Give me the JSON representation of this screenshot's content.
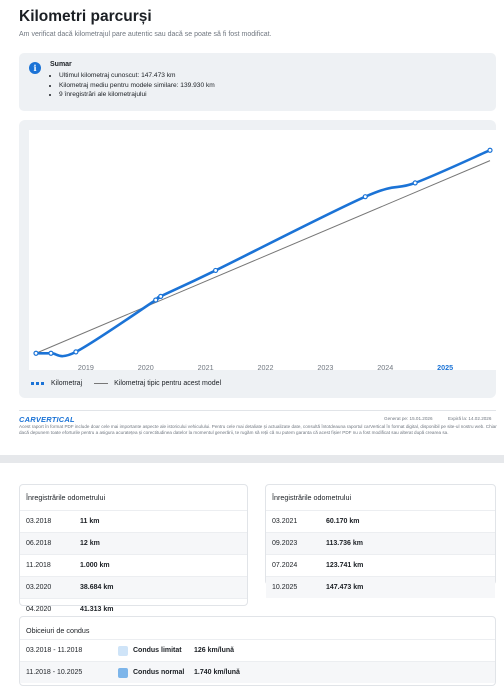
{
  "header": {
    "title": "Kilometri parcurși",
    "subtitle": "Am verificat dacă kilometrajul pare autentic sau dacă se poate să fi fost modificat."
  },
  "summary": {
    "title": "Sumar",
    "icon": "info-icon",
    "items": [
      "Ultimul kilometraj cunoscut: 147.473 km",
      "Kilometraj mediu pentru modele similare: 139.930 km",
      "9 înregistrări ale kilometrajului"
    ]
  },
  "chart_data": {
    "type": "line",
    "title": "",
    "xlabel": "",
    "ylabel": "",
    "x_ticks": [
      "2019",
      "2020",
      "2021",
      "2022",
      "2023",
      "2024",
      "2025"
    ],
    "highlight_tick": "2025",
    "grid": false,
    "legend_position": "bottom-left",
    "series": [
      {
        "name": "Kilometraj",
        "style": "dashed-markers",
        "color": "#1b73d6",
        "points": [
          {
            "x": "03.2018",
            "y": 11
          },
          {
            "x": "06.2018",
            "y": 12
          },
          {
            "x": "11.2018",
            "y": 1000
          },
          {
            "x": "03.2020",
            "y": 38684
          },
          {
            "x": "04.2020",
            "y": 41313
          },
          {
            "x": "03.2021",
            "y": 60170
          },
          {
            "x": "09.2023",
            "y": 113736
          },
          {
            "x": "07.2024",
            "y": 123741
          },
          {
            "x": "10.2025",
            "y": 147473
          }
        ]
      },
      {
        "name": "Kilometraj tipic pentru acest model",
        "style": "solid",
        "color": "#777777",
        "points": [
          {
            "x": "03.2018",
            "y": 0
          },
          {
            "x": "10.2025",
            "y": 139930
          }
        ]
      }
    ]
  },
  "footer": {
    "brand": "CARVERTICAL",
    "generated": "Generat pe: 15.01.2026",
    "expires": "Expiră la: 14.02.2026",
    "disclaimer": "Acest raport în format PDF include doar cele mai importante aspecte ale istoricului vehiculului. Pentru cele mai detaliate și actualizate date, consultă întotdeauna raportul carVertical în format digital, disponibil pe site-ul nostru web. Chiar dacă depunem toate eforturile pentru a asigura acuratețea și corectitudinea datelor la momentul generării, te rugăm să reții că nu putem garanta că acest fișier PDF nu a fost modificat sau alterat după crearea sa."
  },
  "odometer_left": {
    "title": "Înregistrările odometrului",
    "rows": [
      {
        "date": "03.2018",
        "km": "11 km"
      },
      {
        "date": "06.2018",
        "km": "12 km"
      },
      {
        "date": "11.2018",
        "km": "1.000 km"
      },
      {
        "date": "03.2020",
        "km": "38.684 km"
      },
      {
        "date": "04.2020",
        "km": "41.313 km"
      }
    ]
  },
  "odometer_right": {
    "title": "Înregistrările odometrului",
    "rows": [
      {
        "date": "03.2021",
        "km": "60.170 km"
      },
      {
        "date": "09.2023",
        "km": "113.736 km"
      },
      {
        "date": "07.2024",
        "km": "123.741 km"
      },
      {
        "date": "10.2025",
        "km": "147.473 km"
      }
    ]
  },
  "driving": {
    "title": "Obiceiuri de condus",
    "rows": [
      {
        "period": "03.2018 - 11.2018",
        "label": "Condus limitat",
        "value": "126 km/lună",
        "color": "#cfe4f8"
      },
      {
        "period": "11.2018 - 10.2025",
        "label": "Condus normal",
        "value": "1.740 km/lună",
        "color": "#7db5ea"
      }
    ]
  }
}
